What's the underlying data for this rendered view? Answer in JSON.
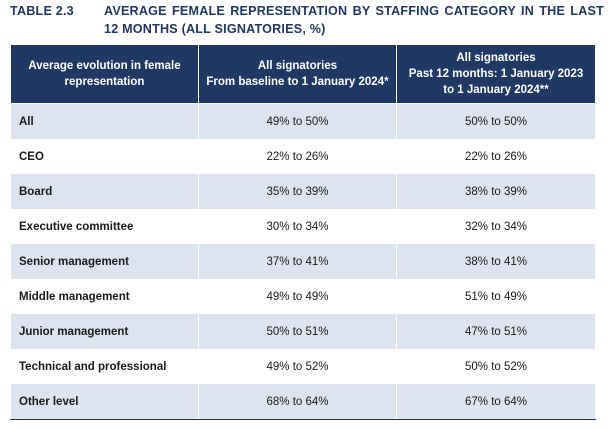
{
  "caption": {
    "number": "TABLE 2.3",
    "title": "AVERAGE FEMALE REPRESENTATION BY STAFFING CATEGORY IN THE LAST 12 MONTHS (ALL SIGNATORIES, %)"
  },
  "table": {
    "header": {
      "col1": "Average evolution in female representation",
      "col2_line1": "All signatories",
      "col2_line2": "From baseline to 1 January 2024*",
      "col3_line1": "All signatories",
      "col3_line2": "Past 12 months: 1 January 2023 to 1 January 2024**"
    },
    "rows": [
      {
        "label": "All",
        "baseline": "49% to 50%",
        "past12": "50% to 50%"
      },
      {
        "label": "CEO",
        "baseline": "22% to 26%",
        "past12": "22% to 26%"
      },
      {
        "label": "Board",
        "baseline": "35% to 39%",
        "past12": "38% to 39%"
      },
      {
        "label": "Executive committee",
        "baseline": "30% to 34%",
        "past12": "32% to 34%"
      },
      {
        "label": "Senior management",
        "baseline": "37% to 41%",
        "past12": "38% to 41%"
      },
      {
        "label": "Middle management",
        "baseline": "49% to 49%",
        "past12": "51% to 49%"
      },
      {
        "label": "Junior management",
        "baseline": "50% to 51%",
        "past12": "47% to 51%"
      },
      {
        "label": "Technical and professional",
        "baseline": "49% to 52%",
        "past12": "50% to 52%"
      },
      {
        "label": "Other level",
        "baseline": "68% to 64%",
        "past12": "67% to 64%"
      }
    ]
  },
  "colors": {
    "header_bg": "#1f3864",
    "shaded_row": "#dde3ef",
    "caption_text": "#1f3864"
  }
}
